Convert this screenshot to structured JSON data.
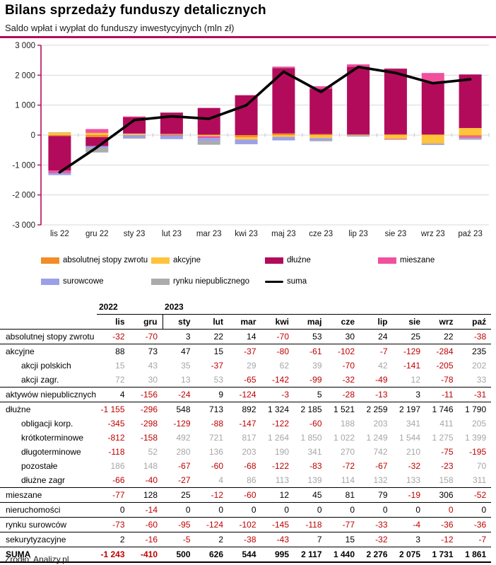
{
  "header": {
    "title": "Bilans sprzedaży funduszy detalicznych",
    "subtitle": "Saldo wpłat i wypłat do funduszy inwestycyjnych (mln zł)"
  },
  "colors": {
    "orange": "#F28C28",
    "yellow": "#FFC33C",
    "magenta": "#B30B5B",
    "pink": "#F0509E",
    "periwinkle": "#9CA0E8",
    "gray": "#ABABAB",
    "line": "#000000",
    "axis": "#B30B5B",
    "grid": "#D9D9D9",
    "neg_red": "#C00000",
    "sub_gray": "#A6A6A6"
  },
  "chart_data": {
    "type": "bar",
    "subtype": "stacked-bars-with-line",
    "categories": [
      "lis 22",
      "gru 22",
      "sty 23",
      "lut 23",
      "mar 23",
      "kwi 23",
      "maj 23",
      "cze 23",
      "lip 23",
      "sie 23",
      "wrz 23",
      "paź 23"
    ],
    "series": [
      {
        "name": "absolutnej stopy zwrotu",
        "color": "orange",
        "values": [
          -32,
          -70,
          3,
          22,
          14,
          -70,
          53,
          30,
          24,
          25,
          22,
          -38
        ]
      },
      {
        "name": "akcyjne",
        "color": "yellow",
        "values": [
          88,
          73,
          47,
          15,
          -37,
          -80,
          -61,
          -102,
          -7,
          -129,
          -284,
          235
        ]
      },
      {
        "name": "dłużne",
        "color": "magenta",
        "values": [
          -1155,
          -296,
          548,
          713,
          892,
          1324,
          2185,
          1521,
          2259,
          2197,
          1746,
          1790
        ]
      },
      {
        "name": "mieszane",
        "color": "pink",
        "values": [
          -77,
          128,
          25,
          -12,
          -60,
          12,
          45,
          81,
          79,
          -19,
          306,
          -52
        ]
      },
      {
        "name": "surowcowe",
        "color": "periwinkle",
        "values": [
          -73,
          -60,
          -95,
          -124,
          -102,
          -145,
          -118,
          -77,
          -33,
          -4,
          -36,
          -36
        ]
      },
      {
        "name": "rynku niepublicznego",
        "color": "gray",
        "values": [
          4,
          -156,
          -24,
          9,
          -124,
          -3,
          5,
          -28,
          -13,
          3,
          -11,
          -31
        ]
      }
    ],
    "line_series": {
      "name": "suma",
      "values": [
        -1243,
        -410,
        500,
        626,
        544,
        995,
        2117,
        1440,
        2276,
        2075,
        1731,
        1861
      ]
    },
    "title": "",
    "xlabel": "",
    "ylabel": "",
    "ylim": [
      -3000,
      3000
    ],
    "ytick_step": 1000,
    "ytick_labels": [
      "3 000",
      "2 000",
      "1 000",
      "0",
      "-1 000",
      "-2 000",
      "-3 000"
    ],
    "grid": true,
    "legend_position": "below"
  },
  "legend": {
    "rows": [
      [
        {
          "label": "absolutnej stopy zwrotu",
          "color": "orange",
          "type": "swatch"
        },
        {
          "label": "akcyjne",
          "color": "yellow",
          "type": "swatch"
        },
        {
          "label": "dłużne",
          "color": "magenta",
          "type": "swatch"
        },
        {
          "label": "mieszane",
          "color": "pink",
          "type": "swatch"
        }
      ],
      [
        {
          "label": "surowcowe",
          "color": "periwinkle",
          "type": "swatch"
        },
        {
          "label": "rynku niepublicznego",
          "color": "gray",
          "type": "swatch"
        },
        {
          "label": "suma",
          "color": "line",
          "type": "line"
        }
      ]
    ]
  },
  "table": {
    "year_groups": [
      {
        "label": "2022",
        "span": 2
      },
      {
        "label": "2023",
        "span": 10
      }
    ],
    "months": [
      "lis",
      "gru",
      "sty",
      "lut",
      "mar",
      "kwi",
      "maj",
      "cze",
      "lip",
      "sie",
      "wrz",
      "paź"
    ],
    "rows": [
      {
        "label": "absolutnej stopy zwrotu",
        "type": "main",
        "values": [
          "-32",
          "-70",
          "3",
          "22",
          "14",
          "-70",
          "53",
          "30",
          "24",
          "25",
          "22",
          "-38"
        ]
      },
      {
        "label": "akcyjne",
        "type": "main",
        "values": [
          "88",
          "73",
          "47",
          "15",
          "-37",
          "-80",
          "-61",
          "-102",
          "-7",
          "-129",
          "-284",
          "235"
        ]
      },
      {
        "label": "akcji polskich",
        "type": "sub",
        "values": [
          "15",
          "43",
          "35",
          "-37",
          "29",
          "62",
          "39",
          "-70",
          "42",
          "-141",
          "-205",
          "202"
        ]
      },
      {
        "label": "akcji zagr.",
        "type": "sub",
        "values": [
          "72",
          "30",
          "13",
          "53",
          "-65",
          "-142",
          "-99",
          "-32",
          "-49",
          "12",
          "-78",
          "33"
        ]
      },
      {
        "label": "aktywów niepublicznych",
        "type": "main",
        "values": [
          "4",
          "-156",
          "-24",
          "9",
          "-124",
          "-3",
          "5",
          "-28",
          "-13",
          "3",
          "-11",
          "-31"
        ]
      },
      {
        "label": "dłużne",
        "type": "main",
        "values": [
          "-1 155",
          "-296",
          "548",
          "713",
          "892",
          "1 324",
          "2 185",
          "1 521",
          "2 259",
          "2 197",
          "1 746",
          "1 790"
        ]
      },
      {
        "label": "obligacji korp.",
        "type": "sub",
        "values": [
          "-345",
          "-298",
          "-129",
          "-88",
          "-147",
          "-122",
          "-60",
          "188",
          "203",
          "341",
          "411",
          "205"
        ]
      },
      {
        "label": "krótkoterminowe",
        "type": "sub",
        "values": [
          "-812",
          "-158",
          "492",
          "721",
          "817",
          "1 264",
          "1 850",
          "1 022",
          "1 249",
          "1 544",
          "1 275",
          "1 399"
        ]
      },
      {
        "label": "długoterminowe",
        "type": "sub",
        "values": [
          "-118",
          "52",
          "280",
          "136",
          "203",
          "190",
          "341",
          "270",
          "742",
          "210",
          "-75",
          "-195"
        ]
      },
      {
        "label": "pozostałe",
        "type": "sub",
        "values": [
          "186",
          "148",
          "-67",
          "-60",
          "-68",
          "-122",
          "-83",
          "-72",
          "-67",
          "-32",
          "-23",
          "70"
        ]
      },
      {
        "label": "dłużne zagr",
        "type": "sub",
        "values": [
          "-66",
          "-40",
          "-27",
          "4",
          "86",
          "113",
          "139",
          "114",
          "132",
          "133",
          "158",
          "311"
        ]
      },
      {
        "label": "mieszane",
        "type": "main",
        "values": [
          "-77",
          "128",
          "25",
          "-12",
          "-60",
          "12",
          "45",
          "81",
          "79",
          "-19",
          "306",
          "-52"
        ]
      },
      {
        "label": "nieruchomości",
        "type": "main",
        "red_cols": [
          10
        ],
        "values": [
          "0",
          "-14",
          "0",
          "0",
          "0",
          "0",
          "0",
          "0",
          "0",
          "0",
          "0",
          "0"
        ]
      },
      {
        "label": "rynku surowców",
        "type": "main",
        "values": [
          "-73",
          "-60",
          "-95",
          "-124",
          "-102",
          "-145",
          "-118",
          "-77",
          "-33",
          "-4",
          "-36",
          "-36"
        ]
      },
      {
        "label": "sekurytyzacyjne",
        "type": "main",
        "values": [
          "2",
          "-16",
          "-5",
          "2",
          "-38",
          "-43",
          "7",
          "15",
          "-32",
          "3",
          "-12",
          "-7"
        ]
      },
      {
        "label": "SUMA",
        "type": "total",
        "values": [
          "-1 243",
          "-410",
          "500",
          "626",
          "544",
          "995",
          "2 117",
          "1 440",
          "2 276",
          "2 075",
          "1 731",
          "1 861"
        ]
      }
    ]
  },
  "footer": {
    "source": "Źródło: Analizy.pl"
  }
}
